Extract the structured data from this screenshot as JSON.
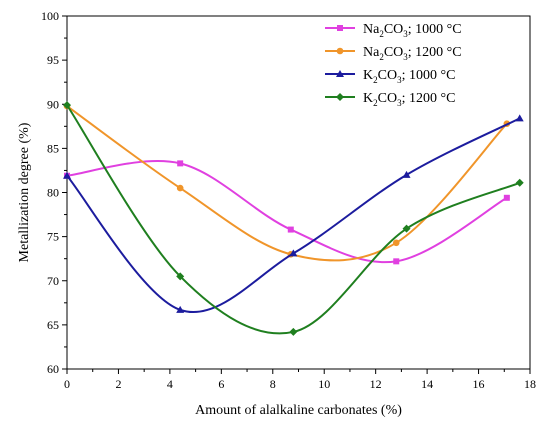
{
  "chart_data": {
    "type": "line",
    "xlabel": "Amount of alalkaline carbonates (%)",
    "ylabel": "Metallization degree (%)",
    "xlim": [
      0,
      18
    ],
    "ylim": [
      60,
      100
    ],
    "xticks": [
      "0",
      "2",
      "4",
      "6",
      "8",
      "10",
      "12",
      "14",
      "16",
      "18"
    ],
    "yticks": [
      "60",
      "65",
      "70",
      "75",
      "80",
      "85",
      "90",
      "95",
      "100"
    ],
    "grid": false,
    "legend_position": "top-right",
    "series": [
      {
        "name": "Na2CO3; 1000 °C",
        "label_parts": [
          "Na",
          "2",
          "CO",
          "3",
          "; 1000 °C"
        ],
        "color": "#e040e0",
        "marker": "square",
        "points": [
          [
            0,
            81.9
          ],
          [
            4.4,
            83.3
          ],
          [
            8.7,
            75.8
          ],
          [
            12.8,
            72.2
          ],
          [
            17.1,
            79.4
          ]
        ]
      },
      {
        "name": "Na2CO3; 1200 °C",
        "label_parts": [
          "Na",
          "2",
          "CO",
          "3",
          "; 1200 °C"
        ],
        "color": "#f0952a",
        "marker": "circle",
        "points": [
          [
            0,
            89.8
          ],
          [
            4.4,
            80.5
          ],
          [
            8.7,
            73.0
          ],
          [
            12.8,
            74.3
          ],
          [
            17.1,
            87.8
          ]
        ]
      },
      {
        "name": "K2CO3; 1000 °C",
        "label_parts": [
          "K",
          "2",
          "CO",
          "3",
          "; 1000 °C"
        ],
        "color": "#1c1c9e",
        "marker": "triangle",
        "points": [
          [
            0,
            81.9
          ],
          [
            4.4,
            66.7
          ],
          [
            8.8,
            73.1
          ],
          [
            13.2,
            82.0
          ],
          [
            17.6,
            88.4
          ]
        ]
      },
      {
        "name": "K2CO3; 1200 °C",
        "label_parts": [
          "K",
          "2",
          "CO",
          "3",
          "; 1200 °C"
        ],
        "color": "#1f7f1f",
        "marker": "diamond",
        "points": [
          [
            0,
            89.9
          ],
          [
            4.4,
            70.5
          ],
          [
            8.8,
            64.2
          ],
          [
            13.2,
            75.9
          ],
          [
            17.6,
            81.1
          ]
        ]
      }
    ]
  }
}
